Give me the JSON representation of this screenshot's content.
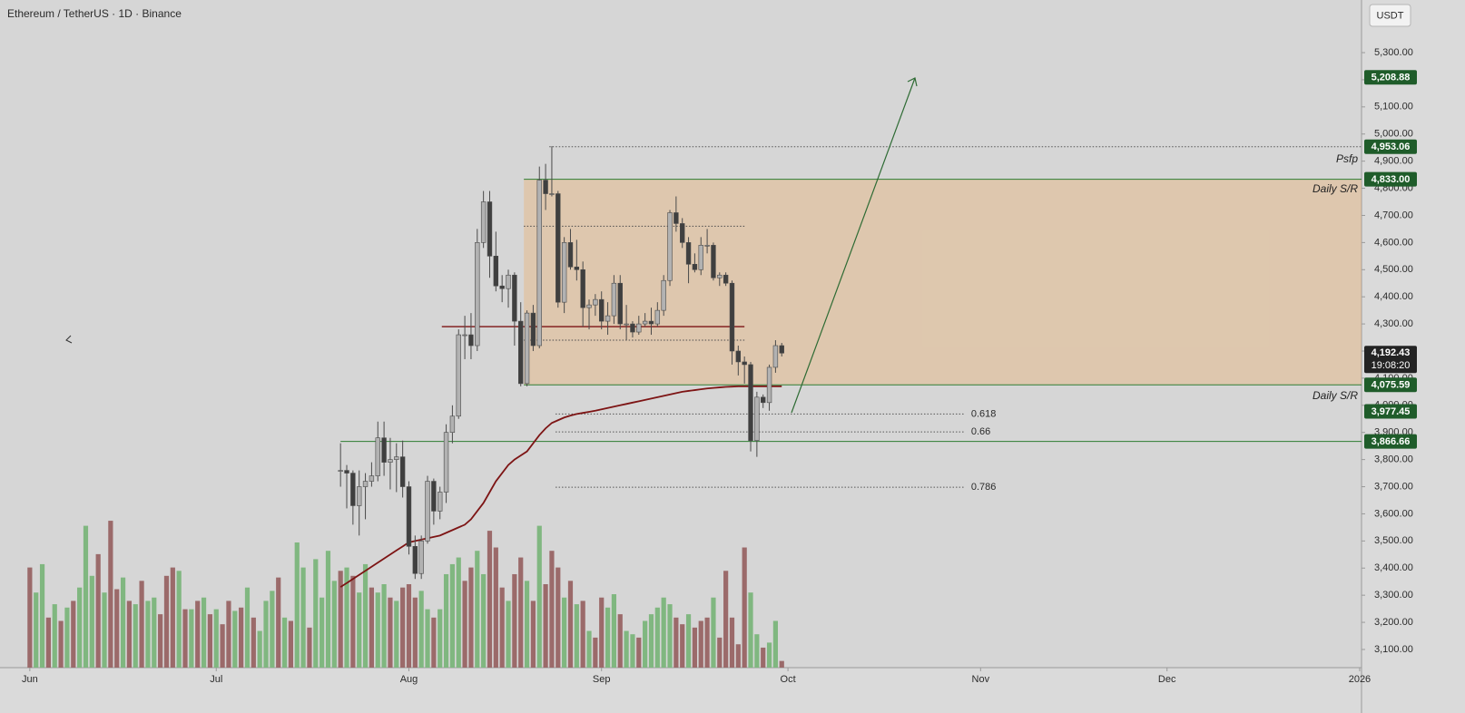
{
  "chart_data": {
    "type": "candlestick",
    "title": "Ethereum / TetherUS · 1D · Binance",
    "currency": "USDT",
    "xlim": [
      -4.8,
      214.3
    ],
    "xticks": [
      {
        "value": 0,
        "label": "Jun"
      },
      {
        "value": 30,
        "label": "Jul"
      },
      {
        "value": 61,
        "label": "Aug"
      },
      {
        "value": 92,
        "label": "Sep"
      },
      {
        "value": 122,
        "label": "Oct"
      },
      {
        "value": 153,
        "label": "Nov"
      },
      {
        "value": 183,
        "label": "Dec"
      },
      {
        "value": 214,
        "label": "2026"
      }
    ],
    "ylim": [
      3033,
      5494
    ],
    "yticks": [
      {
        "value": 3100,
        "label": "3,100.00"
      },
      {
        "value": 3200,
        "label": "3,200.00"
      },
      {
        "value": 3300,
        "label": "3,300.00"
      },
      {
        "value": 3400,
        "label": "3,400.00"
      },
      {
        "value": 3500,
        "label": "3,500.00"
      },
      {
        "value": 3600,
        "label": "3,600.00"
      },
      {
        "value": 3700,
        "label": "3,700.00"
      },
      {
        "value": 3800,
        "label": "3,800.00"
      },
      {
        "value": 3900,
        "label": "3,900.00"
      },
      {
        "value": 4000,
        "label": "4,000.00"
      },
      {
        "value": 4100,
        "label": "4,100.00"
      },
      {
        "value": 4200,
        "label": "4,200.00"
      },
      {
        "value": 4300,
        "label": "4,300.00"
      },
      {
        "value": 4400,
        "label": "4,400.00"
      },
      {
        "value": 4500,
        "label": "4,500.00"
      },
      {
        "value": 4600,
        "label": "4,600.00"
      },
      {
        "value": 4700,
        "label": "4,700.00"
      },
      {
        "value": 4800,
        "label": "4,800.00"
      },
      {
        "value": 4900,
        "label": "4,900.00"
      },
      {
        "value": 5000,
        "label": "5,000.00"
      },
      {
        "value": 5100,
        "label": "5,100.00"
      },
      {
        "value": 5200,
        "label": "5,200.00"
      },
      {
        "value": 5300,
        "label": "5,300.00"
      }
    ],
    "colors": {
      "up": "#b2b2b2",
      "down": "#3f3f3f",
      "outline": "#4a4a4a"
    },
    "x": [
      50,
      51,
      52,
      53,
      54,
      55,
      56,
      57,
      58,
      59,
      60,
      61,
      62,
      63,
      64,
      65,
      66,
      67,
      68,
      69,
      70,
      71,
      72,
      73,
      74,
      75,
      76,
      77,
      78,
      79,
      80,
      81,
      82,
      83,
      84,
      85,
      86,
      87,
      88,
      89,
      90,
      91,
      92,
      93,
      94,
      95,
      96,
      97,
      98,
      99,
      100,
      101,
      102,
      103,
      104,
      105,
      106,
      107,
      108,
      109,
      110,
      111,
      112,
      113,
      114,
      115,
      116,
      117,
      118,
      119,
      120,
      121
    ],
    "ohlc": [
      [
        3760,
        3860,
        3700,
        3760
      ],
      [
        3760,
        3780,
        3620,
        3750
      ],
      [
        3750,
        3760,
        3560,
        3630
      ],
      [
        3630,
        3760,
        3520,
        3700
      ],
      [
        3700,
        3750,
        3580,
        3720
      ],
      [
        3720,
        3790,
        3700,
        3740
      ],
      [
        3740,
        3940,
        3720,
        3880
      ],
      [
        3880,
        3940,
        3740,
        3790
      ],
      [
        3790,
        3880,
        3690,
        3800
      ],
      [
        3800,
        3860,
        3680,
        3810
      ],
      [
        3810,
        3870,
        3660,
        3700
      ],
      [
        3700,
        3720,
        3450,
        3480
      ],
      [
        3480,
        3520,
        3360,
        3380
      ],
      [
        3380,
        3520,
        3360,
        3500
      ],
      [
        3500,
        3740,
        3490,
        3720
      ],
      [
        3720,
        3730,
        3560,
        3610
      ],
      [
        3610,
        3700,
        3580,
        3680
      ],
      [
        3680,
        3930,
        3640,
        3900
      ],
      [
        3900,
        4000,
        3860,
        3960
      ],
      [
        3960,
        4280,
        3950,
        4260
      ],
      [
        4260,
        4330,
        4170,
        4260
      ],
      [
        4260,
        4340,
        4170,
        4220
      ],
      [
        4220,
        4650,
        4200,
        4600
      ],
      [
        4600,
        4790,
        4580,
        4750
      ],
      [
        4750,
        4790,
        4470,
        4550
      ],
      [
        4550,
        4640,
        4420,
        4440
      ],
      [
        4440,
        4480,
        4380,
        4430
      ],
      [
        4430,
        4500,
        4360,
        4480
      ],
      [
        4480,
        4490,
        4220,
        4310
      ],
      [
        4310,
        4380,
        4070,
        4080
      ],
      [
        4080,
        4350,
        4070,
        4340
      ],
      [
        4340,
        4370,
        4200,
        4220
      ],
      [
        4220,
        4880,
        4210,
        4830
      ],
      [
        4830,
        4890,
        4720,
        4780
      ],
      [
        4780,
        4955,
        4770,
        4780
      ],
      [
        4780,
        4790,
        4360,
        4380
      ],
      [
        4380,
        4620,
        4340,
        4600
      ],
      [
        4600,
        4650,
        4500,
        4510
      ],
      [
        4510,
        4610,
        4460,
        4500
      ],
      [
        4500,
        4530,
        4290,
        4360
      ],
      [
        4360,
        4390,
        4280,
        4370
      ],
      [
        4370,
        4410,
        4330,
        4390
      ],
      [
        4390,
        4420,
        4280,
        4310
      ],
      [
        4310,
        4380,
        4260,
        4330
      ],
      [
        4330,
        4480,
        4300,
        4450
      ],
      [
        4450,
        4480,
        4280,
        4300
      ],
      [
        4300,
        4370,
        4240,
        4300
      ],
      [
        4300,
        4310,
        4250,
        4270
      ],
      [
        4270,
        4330,
        4260,
        4300
      ],
      [
        4300,
        4340,
        4290,
        4310
      ],
      [
        4310,
        4360,
        4260,
        4300
      ],
      [
        4300,
        4380,
        4290,
        4350
      ],
      [
        4350,
        4480,
        4330,
        4460
      ],
      [
        4460,
        4720,
        4440,
        4710
      ],
      [
        4710,
        4770,
        4640,
        4670
      ],
      [
        4670,
        4690,
        4580,
        4600
      ],
      [
        4600,
        4620,
        4450,
        4520
      ],
      [
        4520,
        4560,
        4490,
        4500
      ],
      [
        4500,
        4620,
        4480,
        4590
      ],
      [
        4590,
        4650,
        4560,
        4590
      ],
      [
        4590,
        4600,
        4460,
        4470
      ],
      [
        4470,
        4490,
        4440,
        4480
      ],
      [
        4480,
        4490,
        4440,
        4450
      ],
      [
        4450,
        4460,
        4150,
        4200
      ],
      [
        4200,
        4220,
        4110,
        4160
      ],
      [
        4160,
        4180,
        4080,
        4150
      ],
      [
        4150,
        4160,
        3830,
        3870
      ],
      [
        3870,
        4050,
        3810,
        4030
      ],
      [
        4030,
        4040,
        3990,
        4010
      ],
      [
        4010,
        4150,
        3980,
        4140
      ],
      [
        4140,
        4240,
        4120,
        4220
      ],
      [
        4220,
        4230,
        4180,
        4192.43
      ]
    ],
    "moving_average": {
      "color": "#7d1414",
      "values": [
        3330,
        3345,
        3360,
        3375,
        3390,
        3405,
        3420,
        3435,
        3450,
        3465,
        3480,
        3495,
        3500,
        3505,
        3510,
        3515,
        3520,
        3530,
        3540,
        3550,
        3560,
        3580,
        3610,
        3640,
        3680,
        3720,
        3750,
        3780,
        3800,
        3815,
        3830,
        3860,
        3890,
        3915,
        3935,
        3945,
        3955,
        3962,
        3968,
        3972,
        3976,
        3980,
        3985,
        3990,
        3995,
        4000,
        4005,
        4010,
        4015,
        4020,
        4025,
        4030,
        4035,
        4040,
        4045,
        4050,
        4053,
        4056,
        4059,
        4062,
        4064,
        4066,
        4068,
        4069,
        4070,
        4070,
        4070,
        4070,
        4070,
        4070,
        4070,
        4070
      ]
    },
    "volume": {
      "lim": [
        0,
        100
      ],
      "colors": {
        "up": "#80b780",
        "down": "#9b6a6a"
      },
      "x": [
        0,
        1,
        2,
        3,
        4,
        5,
        6,
        7,
        8,
        9,
        10,
        11,
        12,
        13,
        14,
        15,
        16,
        17,
        18,
        19,
        20,
        21,
        22,
        23,
        24,
        25,
        26,
        27,
        28,
        29,
        30,
        31,
        32,
        33,
        34,
        35,
        36,
        37,
        38,
        39,
        40,
        41,
        42,
        43,
        44,
        45,
        46,
        47,
        48,
        49,
        50,
        51,
        52,
        53,
        54,
        55,
        56,
        57,
        58,
        59,
        60,
        61,
        62,
        63,
        64,
        65,
        66,
        67,
        68,
        69,
        70,
        71,
        72,
        73,
        74,
        75,
        76,
        77,
        78,
        79,
        80,
        81,
        82,
        83,
        84,
        85,
        86,
        87,
        88,
        89,
        90,
        91,
        92,
        93,
        94,
        95,
        96,
        97,
        98,
        99,
        100,
        101,
        102,
        103,
        104,
        105,
        106,
        107,
        108,
        109,
        110,
        111,
        112,
        113,
        114,
        115,
        116,
        117,
        118,
        119,
        120,
        121
      ],
      "values": [
        60,
        45,
        62,
        30,
        38,
        28,
        36,
        40,
        48,
        85,
        55,
        68,
        45,
        88,
        47,
        54,
        40,
        38,
        52,
        40,
        42,
        32,
        55,
        60,
        58,
        35,
        35,
        40,
        42,
        32,
        35,
        26,
        40,
        34,
        36,
        48,
        30,
        22,
        40,
        46,
        54,
        30,
        28,
        75,
        60,
        24,
        65,
        42,
        70,
        52,
        58,
        60,
        55,
        45,
        62,
        48,
        45,
        50,
        42,
        40,
        48,
        50,
        42,
        46,
        35,
        30,
        35,
        56,
        62,
        66,
        52,
        60,
        70,
        56,
        82,
        72,
        48,
        40,
        56,
        66,
        52,
        40,
        85,
        50,
        70,
        60,
        42,
        52,
        38,
        40,
        22,
        18,
        42,
        36,
        44,
        32,
        22,
        20,
        18,
        28,
        32,
        36,
        42,
        38,
        30,
        26,
        32,
        24,
        28,
        30,
        42,
        18,
        58,
        30,
        14,
        72,
        45,
        20,
        12,
        15,
        28,
        4
      ],
      "up": [
        false,
        true,
        true,
        false,
        true,
        false,
        true,
        false,
        true,
        true,
        true,
        false,
        true,
        false,
        false,
        true,
        false,
        true,
        false,
        true,
        true,
        false,
        false,
        false,
        true,
        false,
        true,
        false,
        true,
        false,
        true,
        false,
        false,
        true,
        false,
        true,
        false,
        true,
        true,
        true,
        false,
        true,
        false,
        true,
        true,
        false,
        true,
        true,
        true,
        true,
        false,
        true,
        false,
        true,
        true,
        false,
        true,
        true,
        false,
        true,
        false,
        false,
        false,
        true,
        true,
        false,
        true,
        true,
        true,
        true,
        false,
        false,
        true,
        true,
        false,
        false,
        false,
        true,
        false,
        false,
        true,
        false,
        true,
        false,
        false,
        false,
        true,
        false,
        true,
        false,
        true,
        false,
        false,
        true,
        true,
        false,
        true,
        true,
        false,
        true,
        true,
        true,
        true,
        true,
        false,
        false,
        true,
        false,
        false,
        false,
        true,
        false,
        false,
        false,
        false,
        false,
        true,
        true,
        false,
        true,
        true,
        false
      ]
    },
    "zone": {
      "top": 4833,
      "bottom": 4075.59,
      "color": "rgba(236,176,110,0.38)"
    },
    "levels": [
      {
        "value": 5208.88,
        "label": "5,208.88",
        "color": "#1f5c2a",
        "line": "none"
      },
      {
        "value": 4953.06,
        "label": "4,953.06",
        "color": "#1f5c2a",
        "line": "dotted"
      },
      {
        "value": 4833,
        "label": "4,833.00",
        "color": "#1f5c2a",
        "line": "solid"
      },
      {
        "value": 4075.59,
        "label": "4,075.59",
        "color": "#1f5c2a",
        "line": "solid"
      },
      {
        "value": 3977.45,
        "label": "3,977.45",
        "color": "#1f5c2a",
        "line": "none"
      },
      {
        "value": 3866.66,
        "label": "3,866.66",
        "color": "#1f5c2a",
        "line": "solid"
      }
    ],
    "current": {
      "value": 4192.43,
      "label": "4,192.43",
      "countdown": "19:08:20",
      "color": "#232323"
    },
    "guides": [
      {
        "value": 4660,
        "color": "#4a4a4a",
        "line": "dotted"
      },
      {
        "value": 4240,
        "color": "#4a4a4a",
        "line": "dotted"
      },
      {
        "value": 4290,
        "color": "#7d1414",
        "line": "solid"
      }
    ],
    "fib": [
      {
        "label": "0.618",
        "value": 3968
      },
      {
        "label": "0.66",
        "value": 3902
      },
      {
        "label": "0.786",
        "value": 3698
      }
    ],
    "annotations": [
      {
        "text": "Psfp",
        "value": 4906
      },
      {
        "text": "Daily S/R",
        "value": 4795
      },
      {
        "text": "Daily S/R",
        "value": 4033
      }
    ]
  }
}
